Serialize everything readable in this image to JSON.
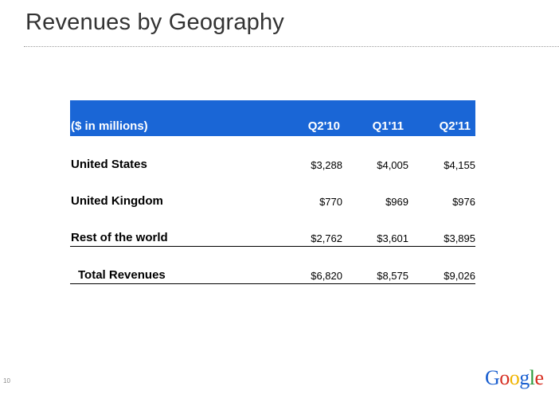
{
  "slide": {
    "title": "Revenues by Geography",
    "page_number": "10"
  },
  "table": {
    "headers": [
      "($ in millions)",
      "Q2'10",
      "Q1'11",
      "Q2'11"
    ],
    "rows": [
      {
        "label": "United States",
        "values": [
          "$3,288",
          "$4,005",
          "$4,155"
        ]
      },
      {
        "label": "United Kingdom",
        "values": [
          "$770",
          "$969",
          "$976"
        ]
      },
      {
        "label": "Rest of the world",
        "values": [
          "$2,762",
          "$3,601",
          "$3,895"
        ]
      },
      {
        "label": "Total Revenues",
        "values": [
          "$6,820",
          "$8,575",
          "$9,026"
        ]
      }
    ]
  },
  "logo": {
    "text": "Google",
    "letter_colors": [
      "#1a5fd0",
      "#d62d20",
      "#f0b400",
      "#1a5fd0",
      "#2a9a3a",
      "#d62d20"
    ]
  },
  "colors": {
    "header_background": "#1a66d6",
    "title_text": "#333333"
  }
}
